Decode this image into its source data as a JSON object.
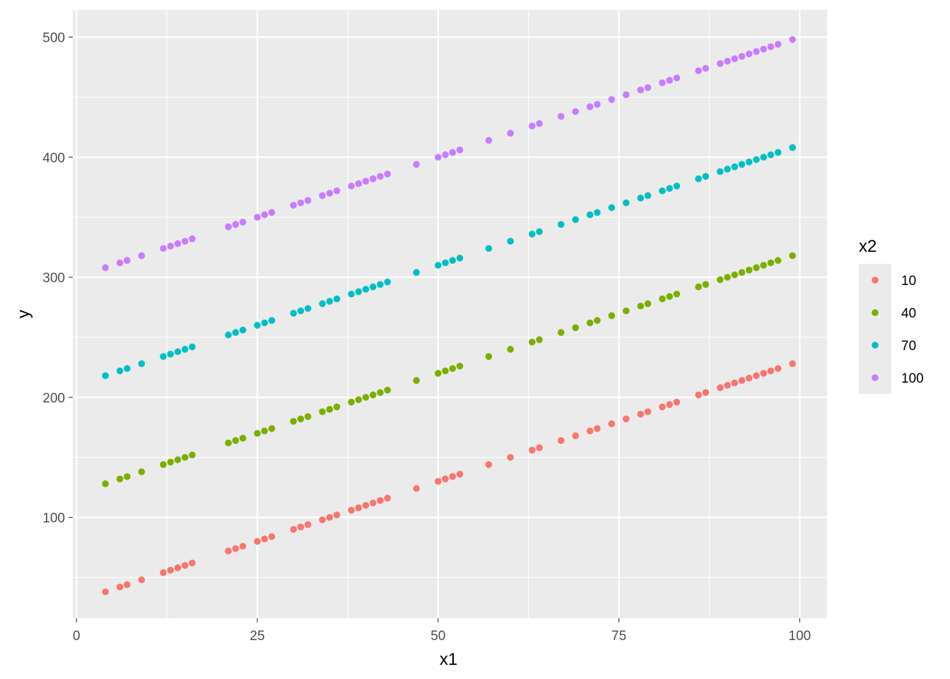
{
  "chart_data": {
    "type": "scatter",
    "title": "",
    "xlabel": "x1",
    "ylabel": "y",
    "xlim": [
      0,
      100
    ],
    "ylim": [
      40,
      500
    ],
    "x_ticks": [
      0,
      25,
      50,
      75,
      100
    ],
    "y_ticks": [
      100,
      200,
      300,
      400,
      500
    ],
    "x_tick_labels": [
      "0",
      "25",
      "50",
      "75",
      "100"
    ],
    "y_tick_labels": [
      "100",
      "200",
      "300",
      "400",
      "500"
    ],
    "grid": true,
    "legend": {
      "title": "x2",
      "position": "right"
    },
    "x": [
      4,
      6,
      7,
      9,
      12,
      13,
      14,
      15,
      16,
      21,
      22,
      23,
      25,
      26,
      27,
      30,
      31,
      32,
      34,
      35,
      36,
      38,
      39,
      40,
      41,
      42,
      43,
      47,
      50,
      51,
      52,
      53,
      57,
      60,
      63,
      64,
      67,
      69,
      71,
      72,
      74,
      76,
      78,
      79,
      81,
      82,
      83,
      86,
      87,
      89,
      90,
      91,
      92,
      93,
      94,
      95,
      96,
      97,
      99
    ],
    "series": [
      {
        "name": "10",
        "color": "#F8766D",
        "values": [
          38,
          42,
          44,
          48,
          54,
          56,
          58,
          60,
          62,
          72,
          74,
          76,
          80,
          82,
          84,
          90,
          92,
          94,
          98,
          100,
          102,
          106,
          108,
          110,
          112,
          114,
          116,
          124,
          130,
          132,
          134,
          136,
          144,
          150,
          156,
          158,
          164,
          168,
          172,
          174,
          178,
          182,
          186,
          188,
          192,
          194,
          196,
          202,
          204,
          208,
          210,
          212,
          214,
          216,
          218,
          220,
          222,
          224,
          228
        ]
      },
      {
        "name": "40",
        "color": "#7CAE00",
        "values": [
          128,
          132,
          134,
          138,
          144,
          146,
          148,
          150,
          152,
          162,
          164,
          166,
          170,
          172,
          174,
          180,
          182,
          184,
          188,
          190,
          192,
          196,
          198,
          200,
          202,
          204,
          206,
          214,
          220,
          222,
          224,
          226,
          234,
          240,
          246,
          248,
          254,
          258,
          262,
          264,
          268,
          272,
          276,
          278,
          282,
          284,
          286,
          292,
          294,
          298,
          300,
          302,
          304,
          306,
          308,
          310,
          312,
          314,
          318
        ]
      },
      {
        "name": "70",
        "color": "#00BFC4",
        "values": [
          218,
          222,
          224,
          228,
          234,
          236,
          238,
          240,
          242,
          252,
          254,
          256,
          260,
          262,
          264,
          270,
          272,
          274,
          278,
          280,
          282,
          286,
          288,
          290,
          292,
          294,
          296,
          304,
          310,
          312,
          314,
          316,
          324,
          330,
          336,
          338,
          344,
          348,
          352,
          354,
          358,
          362,
          366,
          368,
          372,
          374,
          376,
          382,
          384,
          388,
          390,
          392,
          394,
          396,
          398,
          400,
          402,
          404,
          408
        ]
      },
      {
        "name": "100",
        "color": "#C77CFF",
        "values": [
          308,
          312,
          314,
          318,
          324,
          326,
          328,
          330,
          332,
          342,
          344,
          346,
          350,
          352,
          354,
          360,
          362,
          364,
          368,
          370,
          372,
          376,
          378,
          380,
          382,
          384,
          386,
          394,
          400,
          402,
          404,
          406,
          414,
          420,
          426,
          428,
          434,
          438,
          442,
          444,
          448,
          452,
          456,
          458,
          462,
          464,
          466,
          472,
          474,
          478,
          480,
          482,
          484,
          486,
          488,
          490,
          492,
          494,
          498
        ]
      }
    ]
  },
  "colors": {
    "panel_background": "#EBEBEB",
    "grid_major": "#FFFFFF",
    "legend_key_background": "#EBEBEB"
  }
}
